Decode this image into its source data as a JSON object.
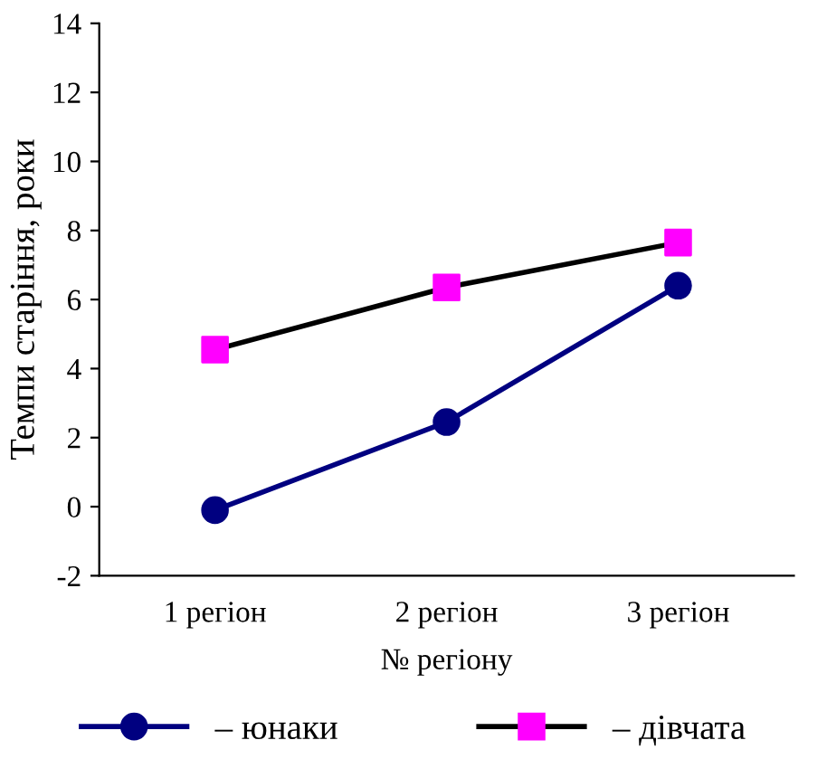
{
  "chart_data": {
    "type": "line",
    "xlabel": "№ регіону",
    "ylabel": "Темпи старіння, роки",
    "categories": [
      "1 регіон",
      "2 регіон",
      "3 регіон"
    ],
    "series": [
      {
        "name": "– юнаки",
        "color": "#000080",
        "marker": "circle",
        "values": [
          -0.1,
          2.45,
          6.4
        ]
      },
      {
        "name": "– дівчата",
        "color": "#000000",
        "colors": [
          "#ff00ff",
          "#ff00ff",
          "#ff00ff"
        ],
        "marker": "square",
        "values": [
          4.55,
          6.35,
          7.65
        ]
      }
    ],
    "ylim": [
      -2,
      14
    ],
    "yticks": [
      -2,
      0,
      2,
      4,
      6,
      8,
      10,
      12,
      14
    ],
    "grid": false,
    "legend": "bottom"
  }
}
